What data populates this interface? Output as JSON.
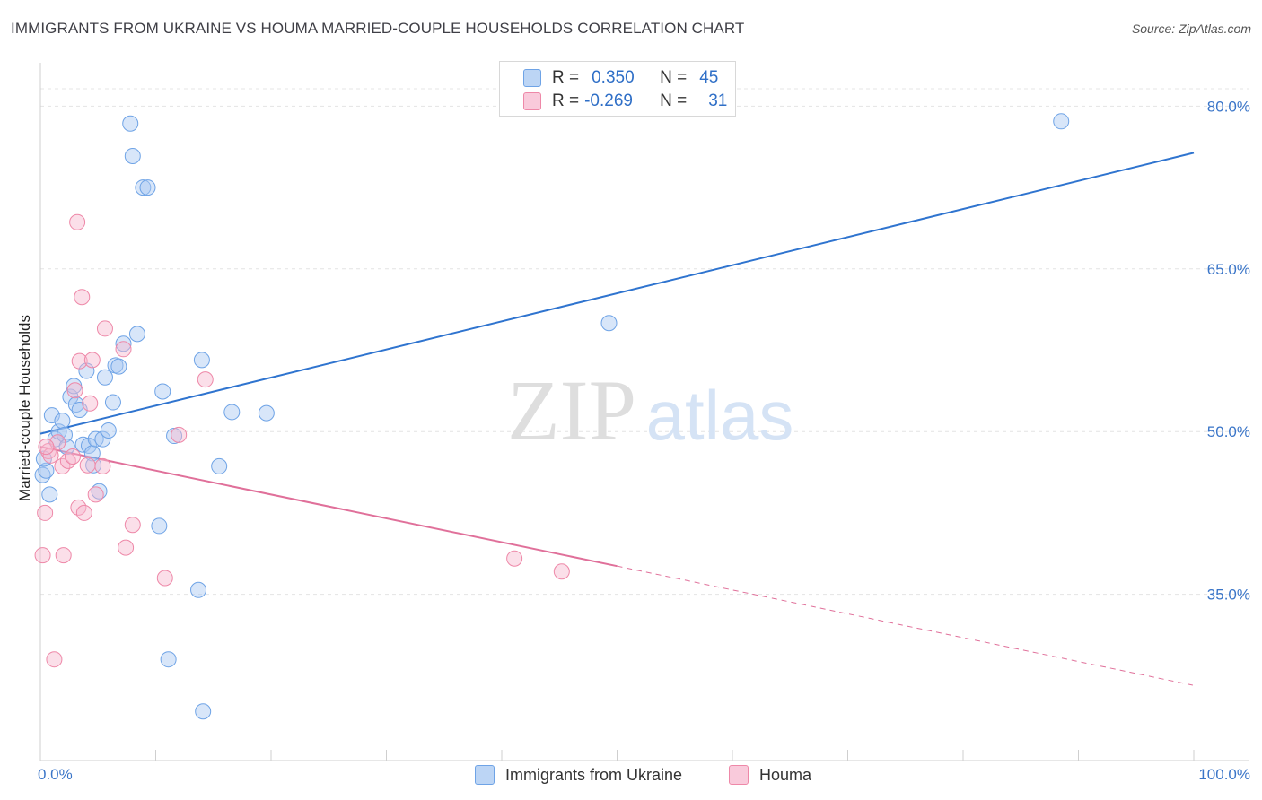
{
  "title": "IMMIGRANTS FROM UKRAINE VS HOUMA MARRIED-COUPLE HOUSEHOLDS CORRELATION CHART",
  "source": "Source: ZipAtlas.com",
  "watermark": {
    "zip": "ZIP",
    "atlas": "atlas"
  },
  "legend": {
    "r_label": "R =",
    "n_label": "N =",
    "series": [
      {
        "name": "Immigrants from Ukraine",
        "r": "0.350",
        "n": "45",
        "color": "#6ea3e6",
        "fill": "#bcd5f5"
      },
      {
        "name": "Houma",
        "r": "-0.269",
        "n": "31",
        "color": "#ee88a8",
        "fill": "#f9cadb"
      }
    ]
  },
  "chart_data": {
    "type": "scatter",
    "title": "IMMIGRANTS FROM UKRAINE VS HOUMA MARRIED-COUPLE HOUSEHOLDS CORRELATION CHART",
    "xlabel": "",
    "ylabel": "Married-couple Households",
    "xlim": [
      0,
      100
    ],
    "ylim": [
      20.5,
      84
    ],
    "x_tick_labels": [
      "0.0%",
      "100.0%"
    ],
    "y_ticks": [
      35,
      50,
      65,
      80
    ],
    "y_tick_labels": [
      "35.0%",
      "50.0%",
      "65.0%",
      "80.0%"
    ],
    "grid": true,
    "series": [
      {
        "name": "Immigrants from Ukraine",
        "color": "#6ea3e6",
        "points": [
          [
            0.2,
            46.0
          ],
          [
            0.5,
            46.4
          ],
          [
            0.8,
            44.2
          ],
          [
            1.0,
            51.5
          ],
          [
            1.3,
            49.3
          ],
          [
            1.6,
            50.0
          ],
          [
            1.9,
            51.0
          ],
          [
            2.1,
            49.7
          ],
          [
            2.3,
            48.6
          ],
          [
            2.6,
            53.2
          ],
          [
            2.9,
            54.2
          ],
          [
            3.1,
            52.5
          ],
          [
            3.4,
            52.0
          ],
          [
            3.7,
            48.8
          ],
          [
            4.0,
            55.6
          ],
          [
            4.2,
            48.7
          ],
          [
            4.5,
            48.0
          ],
          [
            4.6,
            46.9
          ],
          [
            4.8,
            49.3
          ],
          [
            5.1,
            44.5
          ],
          [
            5.4,
            49.3
          ],
          [
            5.6,
            55.0
          ],
          [
            5.9,
            50.1
          ],
          [
            6.3,
            52.7
          ],
          [
            6.5,
            56.1
          ],
          [
            6.8,
            56.0
          ],
          [
            7.2,
            58.1
          ],
          [
            7.8,
            78.4
          ],
          [
            8.0,
            75.4
          ],
          [
            8.4,
            59.0
          ],
          [
            8.9,
            72.5
          ],
          [
            9.3,
            72.5
          ],
          [
            10.3,
            41.3
          ],
          [
            10.6,
            53.7
          ],
          [
            11.1,
            29.0
          ],
          [
            11.6,
            49.6
          ],
          [
            13.7,
            35.4
          ],
          [
            14.0,
            56.6
          ],
          [
            14.1,
            24.2
          ],
          [
            15.5,
            46.8
          ],
          [
            16.6,
            51.8
          ],
          [
            19.6,
            51.7
          ],
          [
            49.3,
            60.0
          ],
          [
            88.5,
            78.6
          ],
          [
            0.3,
            47.5
          ]
        ]
      },
      {
        "name": "Houma",
        "color": "#ee88a8",
        "points": [
          [
            0.2,
            38.6
          ],
          [
            0.4,
            42.5
          ],
          [
            0.7,
            48.2
          ],
          [
            0.9,
            47.8
          ],
          [
            1.2,
            29.0
          ],
          [
            1.5,
            49.0
          ],
          [
            1.9,
            46.8
          ],
          [
            2.0,
            38.6
          ],
          [
            2.4,
            47.3
          ],
          [
            2.8,
            47.7
          ],
          [
            3.0,
            53.8
          ],
          [
            3.2,
            69.3
          ],
          [
            3.3,
            43.0
          ],
          [
            3.4,
            56.5
          ],
          [
            3.6,
            62.4
          ],
          [
            3.8,
            42.5
          ],
          [
            4.1,
            46.9
          ],
          [
            4.3,
            52.6
          ],
          [
            4.5,
            56.6
          ],
          [
            4.8,
            44.2
          ],
          [
            5.4,
            46.8
          ],
          [
            5.6,
            59.5
          ],
          [
            7.4,
            39.3
          ],
          [
            7.2,
            57.6
          ],
          [
            8.0,
            41.4
          ],
          [
            10.8,
            36.5
          ],
          [
            12.0,
            49.7
          ],
          [
            14.3,
            54.8
          ],
          [
            41.1,
            38.3
          ],
          [
            45.2,
            37.1
          ],
          [
            0.5,
            48.6
          ]
        ]
      }
    ],
    "trend_lines": [
      {
        "series": "Immigrants from Ukraine",
        "x": [
          0,
          100
        ],
        "y": [
          49.8,
          75.7
        ],
        "style": "solid"
      },
      {
        "series": "Houma",
        "x": [
          0,
          50
        ],
        "y": [
          48.6,
          37.6
        ],
        "style": "solid"
      },
      {
        "series": "Houma",
        "x": [
          50,
          100
        ],
        "y": [
          37.6,
          26.6
        ],
        "style": "dashed"
      }
    ]
  }
}
